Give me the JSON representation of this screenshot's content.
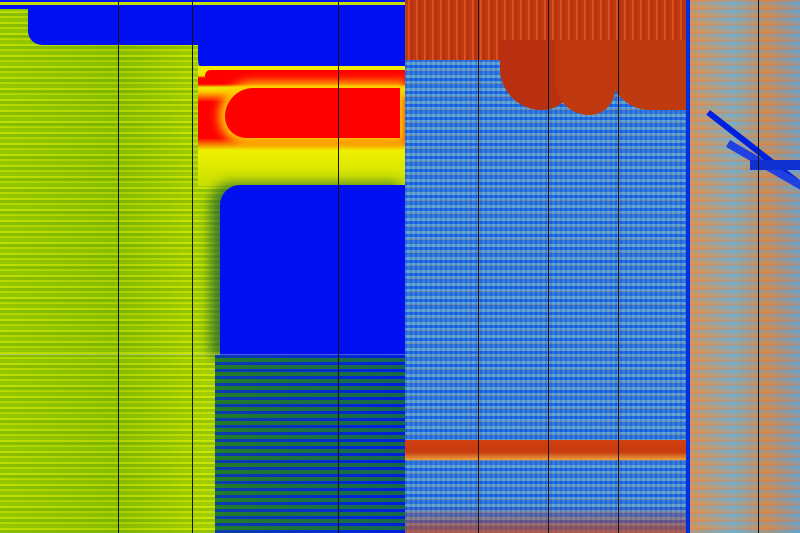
{
  "palette": {
    "low": "#0010f0",
    "mid_low": "#2a9a00",
    "mid": "#a8d400",
    "mid_high": "#f0f000",
    "high": "#ff0000",
    "alt_low": "#1060e0",
    "alt_mid": "#7fc8c0",
    "alt_high": "#c83a10"
  },
  "panels": [
    "left-heatmap",
    "middle-heatmap",
    "right-heatmap"
  ]
}
